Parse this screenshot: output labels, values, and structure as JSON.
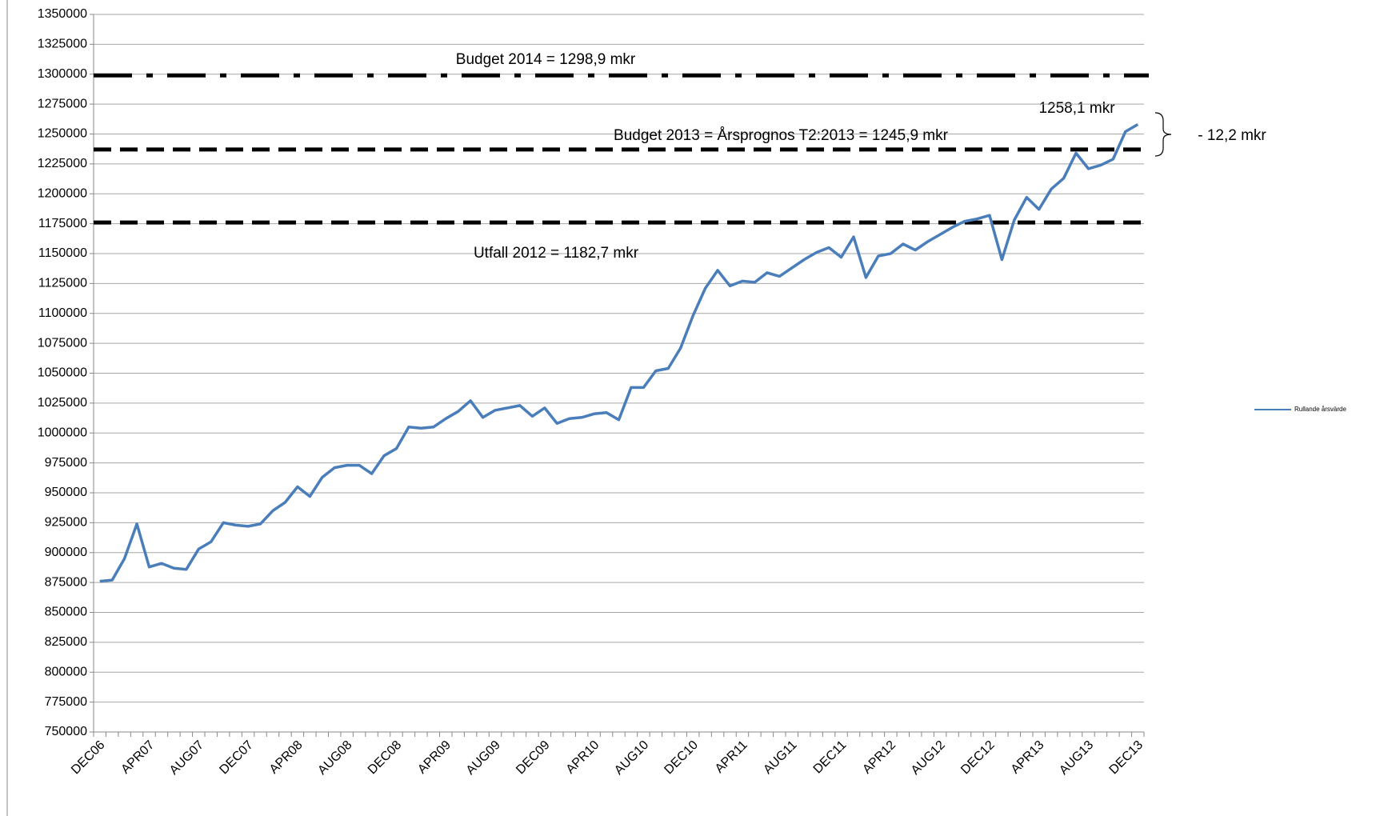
{
  "chart_data": {
    "type": "line",
    "categories": [
      "DEC06",
      null,
      null,
      null,
      "APR07",
      null,
      null,
      null,
      "AUG07",
      null,
      null,
      null,
      "DEC07",
      null,
      null,
      null,
      "APR08",
      null,
      null,
      null,
      "AUG08",
      null,
      null,
      null,
      "DEC08",
      null,
      null,
      null,
      "APR09",
      null,
      null,
      null,
      "AUG09",
      null,
      null,
      null,
      "DEC09",
      null,
      null,
      null,
      "APR10",
      null,
      null,
      null,
      "AUG10",
      null,
      null,
      null,
      "DEC10",
      null,
      null,
      null,
      "APR11",
      null,
      null,
      null,
      "AUG11",
      null,
      null,
      null,
      "DEC11",
      null,
      null,
      null,
      "APR12",
      null,
      null,
      null,
      "AUG12",
      null,
      null,
      null,
      "DEC12",
      null,
      null,
      null,
      "APR13",
      null,
      null,
      null,
      "AUG13",
      null,
      null,
      null,
      "DEC13"
    ],
    "series": [
      {
        "name": "Rullande årsvärde",
        "color": "#4a7ebb",
        "values": [
          876000,
          877000,
          895000,
          924000,
          888000,
          891000,
          887000,
          886000,
          903000,
          909000,
          925000,
          923000,
          922000,
          924000,
          935000,
          942000,
          955000,
          947000,
          963000,
          971000,
          973000,
          973000,
          966000,
          981000,
          987000,
          1005000,
          1004000,
          1005000,
          1012000,
          1018000,
          1027000,
          1013000,
          1019000,
          1021000,
          1023000,
          1014000,
          1021000,
          1008000,
          1012000,
          1013000,
          1016000,
          1017000,
          1011000,
          1038000,
          1038000,
          1052000,
          1054000,
          1071000,
          1098000,
          1121000,
          1136000,
          1123000,
          1127000,
          1126000,
          1134000,
          1131000,
          1138000,
          1145000,
          1151000,
          1155000,
          1147000,
          1164000,
          1130000,
          1148000,
          1150000,
          1158000,
          1153000,
          1160000,
          1166000,
          1172000,
          1177000,
          1179000,
          1182000,
          1145000,
          1178000,
          1197000,
          1187000,
          1204000,
          1213000,
          1234000,
          1221000,
          1224000,
          1229000,
          1252000,
          1258000
        ]
      }
    ],
    "reference_lines": [
      {
        "value": 1299000,
        "style": "dashdot",
        "label": "Budget 2014 =  1298,9 mkr"
      },
      {
        "value": 1237000,
        "style": "dashed",
        "label": "Budget 2013 =  Årsprognos T2:2013 = 1245,9 mkr"
      },
      {
        "value": 1176000,
        "style": "dashed",
        "label": "Utfall 2012 = 1182,7 mkr"
      }
    ],
    "annotations": [
      "1258,1 mkr",
      "- 12,2 mkr"
    ],
    "ylim": [
      750000,
      1350000
    ],
    "yticks": [
      750000,
      775000,
      800000,
      825000,
      850000,
      875000,
      900000,
      925000,
      950000,
      975000,
      1000000,
      1025000,
      1050000,
      1075000,
      1100000,
      1125000,
      1150000,
      1175000,
      1200000,
      1225000,
      1250000,
      1275000,
      1300000,
      1325000,
      1350000
    ],
    "grid": true,
    "legend": "right"
  }
}
